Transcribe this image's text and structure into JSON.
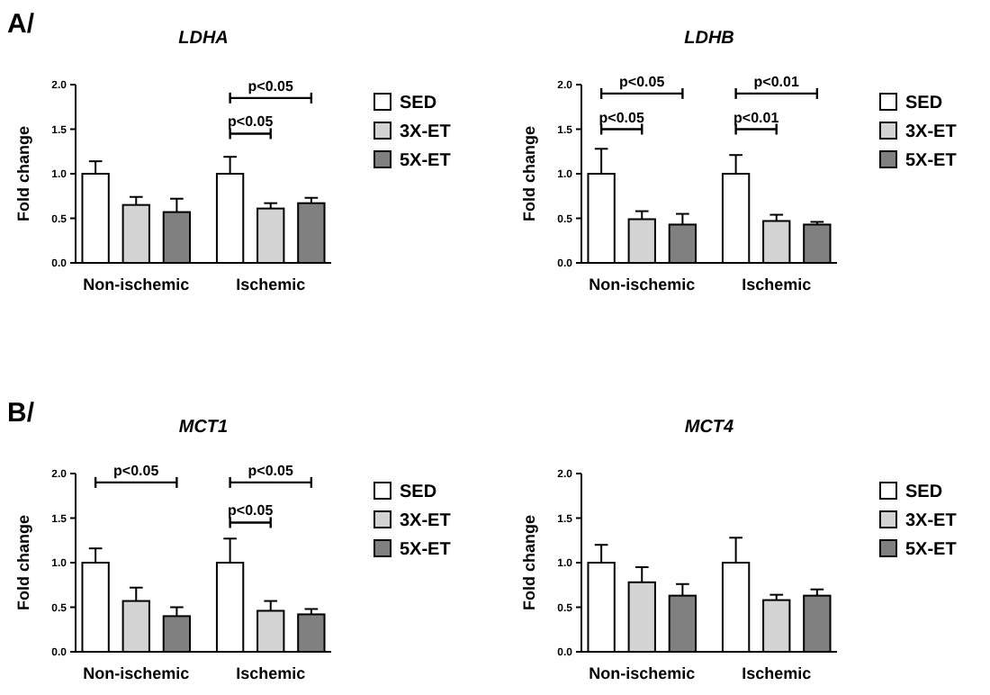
{
  "chart_data": [
    {
      "type": "bar",
      "title": "LDHA",
      "ylabel": "Fold change",
      "categories": [
        "Non-ischemic",
        "Ischemic"
      ],
      "ylim": [
        0,
        2
      ],
      "yticks": [
        {
          "value": 0,
          "label": "0.0"
        },
        {
          "value": 0.5,
          "label": "0.5"
        },
        {
          "value": 1,
          "label": "1.0"
        },
        {
          "value": 1.5,
          "label": "1.5"
        },
        {
          "value": 2,
          "label": "2.0"
        }
      ],
      "legend": "right",
      "annotations": [
        "A/",
        "p<0.05",
        "p<0.05"
      ],
      "series": [
        {
          "name": "SED",
          "color": "#ffffff",
          "values": [
            1.0,
            1.0
          ],
          "errors": [
            [
              1.0,
              1.14
            ],
            [
              1.0,
              1.19
            ]
          ]
        },
        {
          "name": "3X-ET",
          "color": "#d3d3d3",
          "values": [
            0.65,
            0.61
          ],
          "errors": [
            [
              0.65,
              0.74
            ],
            [
              0.61,
              0.67
            ]
          ]
        },
        {
          "name": "5X-ET",
          "color": "#808080",
          "values": [
            0.57,
            0.67
          ],
          "errors": [
            [
              0.57,
              0.72
            ],
            [
              0.67,
              0.73
            ]
          ]
        }
      ]
    },
    {
      "type": "bar",
      "title": "LDHB",
      "ylabel": "Fold change",
      "categories": [
        "Non-ischemic",
        "Ischemic"
      ],
      "ylim": [
        0,
        2
      ],
      "yticks": [
        {
          "value": 0,
          "label": "0.0"
        },
        {
          "value": 0.5,
          "label": "0.5"
        },
        {
          "value": 1,
          "label": "1.0"
        },
        {
          "value": 1.5,
          "label": "1.5"
        },
        {
          "value": 2,
          "label": "2.0"
        }
      ],
      "legend": "right",
      "annotations": [
        "p<0.05",
        "p<0.05",
        "p<0.01",
        "p<0.01"
      ],
      "series": [
        {
          "name": "SED",
          "color": "#ffffff",
          "values": [
            1.0,
            1.0
          ],
          "errors": [
            [
              1.0,
              1.28
            ],
            [
              1.0,
              1.21
            ]
          ]
        },
        {
          "name": "3X-ET",
          "color": "#d3d3d3",
          "values": [
            0.49,
            0.47
          ],
          "errors": [
            [
              0.49,
              0.58
            ],
            [
              0.47,
              0.54
            ]
          ]
        },
        {
          "name": "5X-ET",
          "color": "#808080",
          "values": [
            0.43,
            0.43
          ],
          "errors": [
            [
              0.43,
              0.55
            ],
            [
              0.43,
              0.46
            ]
          ]
        }
      ]
    },
    {
      "type": "bar",
      "title": "MCT1",
      "ylabel": "Fold change",
      "categories": [
        "Non-ischemic",
        "Ischemic"
      ],
      "ylim": [
        0,
        2
      ],
      "yticks": [
        {
          "value": 0,
          "label": "0.0"
        },
        {
          "value": 0.5,
          "label": "0.5"
        },
        {
          "value": 1,
          "label": "1.0"
        },
        {
          "value": 1.5,
          "label": "1.5"
        },
        {
          "value": 2,
          "label": "2.0"
        }
      ],
      "legend": "right",
      "annotations": [
        "B/",
        "p<0.05",
        "p<0.05",
        "p<0.05"
      ],
      "series": [
        {
          "name": "SED",
          "color": "#ffffff",
          "values": [
            1.0,
            1.0
          ],
          "errors": [
            [
              1.0,
              1.16
            ],
            [
              1.0,
              1.27
            ]
          ]
        },
        {
          "name": "3X-ET",
          "color": "#d3d3d3",
          "values": [
            0.57,
            0.46
          ],
          "errors": [
            [
              0.57,
              0.72
            ],
            [
              0.46,
              0.57
            ]
          ]
        },
        {
          "name": "5X-ET",
          "color": "#808080",
          "values": [
            0.4,
            0.42
          ],
          "errors": [
            [
              0.4,
              0.5
            ],
            [
              0.42,
              0.48
            ]
          ]
        }
      ]
    },
    {
      "type": "bar",
      "title": "MCT4",
      "ylabel": "Fold change",
      "categories": [
        "Non-ischemic",
        "Ischemic"
      ],
      "ylim": [
        0,
        2
      ],
      "yticks": [
        {
          "value": 0,
          "label": "0.0"
        },
        {
          "value": 0.5,
          "label": "0.5"
        },
        {
          "value": 1,
          "label": "1.0"
        },
        {
          "value": 1.5,
          "label": "1.5"
        },
        {
          "value": 2,
          "label": "2.0"
        }
      ],
      "legend": "right",
      "series": [
        {
          "name": "SED",
          "color": "#ffffff",
          "values": [
            1.0,
            1.0
          ],
          "errors": [
            [
              1.0,
              1.2
            ],
            [
              1.0,
              1.28
            ]
          ]
        },
        {
          "name": "3X-ET",
          "color": "#d3d3d3",
          "values": [
            0.78,
            0.58
          ],
          "errors": [
            [
              0.78,
              0.95
            ],
            [
              0.58,
              0.64
            ]
          ]
        },
        {
          "name": "5X-ET",
          "color": "#808080",
          "values": [
            0.63,
            0.63
          ],
          "errors": [
            [
              0.63,
              0.76
            ],
            [
              0.63,
              0.7
            ]
          ]
        }
      ]
    }
  ]
}
